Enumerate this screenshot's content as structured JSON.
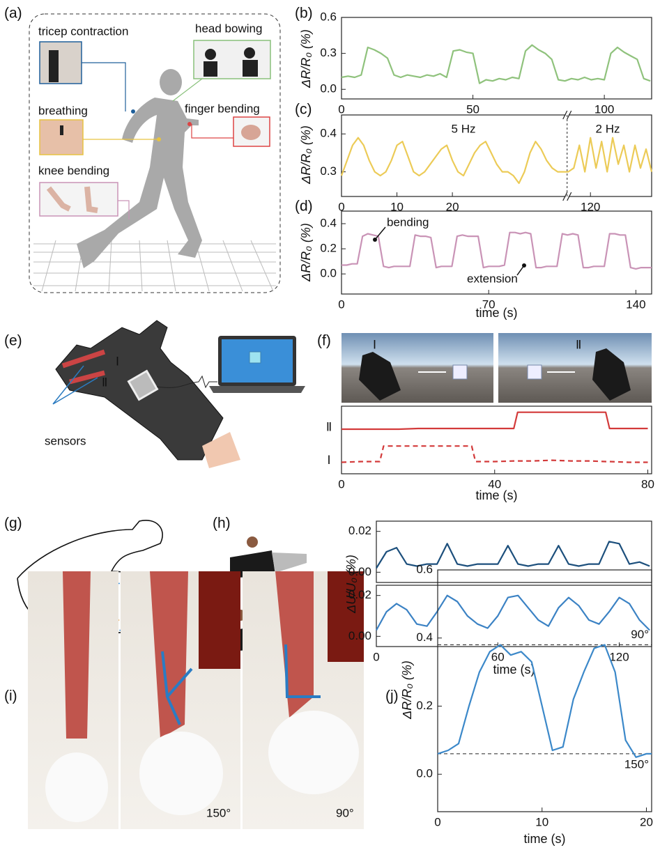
{
  "figure": {
    "panel_labels": [
      "(a)",
      "(b)",
      "(c)",
      "(d)",
      "(e)",
      "(f)",
      "(g)",
      "(h)",
      "(i)",
      "(j)"
    ],
    "a_labels": [
      "tricep contraction",
      "head bowing",
      "breathing",
      "finger bending",
      "knee bending"
    ],
    "e_labels": [
      "Ⅰ",
      "Ⅱ",
      "sensors"
    ],
    "f_photo_labels": [
      "Ⅰ",
      "Ⅱ"
    ],
    "i_labels": [
      "150°",
      "90°"
    ]
  },
  "chart_data": [
    {
      "type": "line",
      "ylabel": "ΔR/R₀ (%)",
      "x": [
        0,
        2.5,
        5,
        7.5,
        10,
        12.5,
        15,
        17.5,
        20,
        22.5,
        25,
        27.5,
        30,
        32.5,
        35,
        37.5,
        40,
        42.5,
        45,
        47.5,
        50,
        52.5,
        55,
        57.5,
        60,
        62.5,
        65,
        67.5,
        70,
        72.5,
        75,
        77.5,
        80,
        82.5,
        85,
        87.5,
        90,
        92.5,
        95,
        97.5,
        100,
        102.5,
        105,
        107.5,
        110,
        112.5,
        115,
        117.5
      ],
      "series": [
        {
          "color": "#8fc27c",
          "values": [
            0.1,
            0.11,
            0.1,
            0.12,
            0.35,
            0.33,
            0.3,
            0.26,
            0.12,
            0.1,
            0.12,
            0.11,
            0.1,
            0.12,
            0.11,
            0.13,
            0.1,
            0.32,
            0.33,
            0.31,
            0.3,
            0.05,
            0.08,
            0.07,
            0.09,
            0.08,
            0.1,
            0.09,
            0.32,
            0.37,
            0.33,
            0.3,
            0.25,
            0.08,
            0.07,
            0.09,
            0.08,
            0.1,
            0.08,
            0.09,
            0.08,
            0.3,
            0.35,
            0.31,
            0.28,
            0.25,
            0.09,
            0.07
          ]
        }
      ],
      "xlim": [
        0,
        118
      ],
      "ylim": [
        -0.08,
        0.6
      ],
      "xticks": [
        0,
        50,
        100
      ],
      "yticks": [
        {
          "value": 0,
          "label": "0.0"
        },
        0.3,
        0.6
      ]
    },
    {
      "type": "line",
      "ylabel": "ΔR/R₀ (%)",
      "annotations": [
        "5 Hz",
        "2 Hz"
      ],
      "x": [
        0,
        1,
        2,
        3,
        4,
        5,
        6,
        7,
        8,
        9,
        10,
        11,
        12,
        13,
        14,
        15,
        16,
        17,
        18,
        19,
        20,
        21,
        22,
        23,
        24,
        25,
        26,
        27,
        28,
        29,
        30,
        31,
        32,
        33,
        34,
        35,
        36,
        37,
        38,
        39,
        40,
        116,
        117,
        118,
        119,
        120,
        121,
        122,
        123,
        124,
        125,
        126,
        127,
        128,
        129,
        130,
        131
      ],
      "series": [
        {
          "color": "#eccb57",
          "values": [
            0.29,
            0.33,
            0.37,
            0.39,
            0.37,
            0.33,
            0.3,
            0.29,
            0.3,
            0.33,
            0.37,
            0.38,
            0.34,
            0.3,
            0.29,
            0.3,
            0.32,
            0.34,
            0.36,
            0.37,
            0.33,
            0.3,
            0.29,
            0.32,
            0.35,
            0.37,
            0.38,
            0.35,
            0.32,
            0.3,
            0.3,
            0.29,
            0.27,
            0.3,
            0.35,
            0.38,
            0.36,
            0.33,
            0.31,
            0.3,
            0.3,
            0.3,
            0.31,
            0.37,
            0.3,
            0.39,
            0.31,
            0.38,
            0.3,
            0.39,
            0.32,
            0.37,
            0.3,
            0.37,
            0.31,
            0.36,
            0.3
          ]
        }
      ],
      "xlim": [
        0,
        131
      ],
      "xbreak": [
        40.5,
        116
      ],
      "ylim": [
        0.235,
        0.45
      ],
      "xticks": [
        0,
        10,
        20,
        120
      ],
      "yticks": [
        0.3,
        0.4
      ]
    },
    {
      "type": "line",
      "ylabel": "ΔR/R₀ (%)",
      "xlabel": "time (s)",
      "annotations": [
        "bending",
        "extension"
      ],
      "x": [
        0,
        2.5,
        5,
        7.5,
        10,
        12.5,
        15,
        17.5,
        20,
        22.5,
        25,
        27.5,
        30,
        32.5,
        35,
        37.5,
        40,
        42.5,
        45,
        47.5,
        50,
        52.5,
        55,
        57.5,
        60,
        62.5,
        65,
        67.5,
        70,
        72.5,
        75,
        77.5,
        80,
        82.5,
        85,
        87.5,
        90,
        92.5,
        95,
        97.5,
        100,
        102.5,
        105,
        107.5,
        110,
        112.5,
        115,
        117.5,
        120,
        122.5,
        125,
        127.5,
        130,
        132.5,
        135,
        137.5,
        140,
        142.5,
        145,
        147.5
      ],
      "series": [
        {
          "color": "#c993b6",
          "values": [
            0.07,
            0.07,
            0.08,
            0.08,
            0.3,
            0.32,
            0.31,
            0.3,
            0.06,
            0.05,
            0.06,
            0.06,
            0.06,
            0.06,
            0.31,
            0.3,
            0.3,
            0.29,
            0.05,
            0.06,
            0.06,
            0.06,
            0.3,
            0.31,
            0.3,
            0.3,
            0.3,
            0.05,
            0.06,
            0.06,
            0.06,
            0.07,
            0.33,
            0.33,
            0.32,
            0.33,
            0.32,
            0.05,
            0.05,
            0.06,
            0.06,
            0.06,
            0.32,
            0.31,
            0.32,
            0.31,
            0.05,
            0.05,
            0.06,
            0.06,
            0.06,
            0.32,
            0.32,
            0.31,
            0.31,
            0.05,
            0.04,
            0.05,
            0.05,
            0.05
          ]
        }
      ],
      "xlim": [
        0,
        147.5
      ],
      "ylim": [
        -0.16,
        0.5
      ],
      "xticks": [
        0,
        70,
        140
      ],
      "yticks": [
        {
          "value": 0,
          "label": "0.0"
        },
        0.2,
        0.4
      ]
    },
    {
      "type": "line",
      "xlabel": "time (s)",
      "x": [
        0,
        5,
        10,
        11,
        15,
        20,
        25,
        30,
        34,
        35,
        40,
        45,
        46,
        50,
        55,
        60,
        65,
        69,
        70,
        75,
        80
      ],
      "series": [
        {
          "name": "Ⅱ",
          "color": "#d33a3a",
          "line_style": "solid",
          "values": [
            0.66,
            0.66,
            0.66,
            0.66,
            0.66,
            0.67,
            0.67,
            0.67,
            0.67,
            0.67,
            0.67,
            0.67,
            0.91,
            0.91,
            0.91,
            0.91,
            0.91,
            0.91,
            0.67,
            0.67,
            0.67
          ]
        },
        {
          "name": "Ⅰ",
          "color": "#d33a3a",
          "line_style": "dashed",
          "values": [
            0.17,
            0.18,
            0.18,
            0.41,
            0.41,
            0.41,
            0.41,
            0.41,
            0.41,
            0.18,
            0.18,
            0.19,
            0.19,
            0.19,
            0.2,
            0.19,
            0.19,
            0.18,
            0.18,
            0.17,
            0.17
          ]
        }
      ],
      "xlim": [
        0,
        81
      ],
      "ylim": [
        0,
        1
      ],
      "xticks": [
        0,
        40,
        80
      ]
    },
    {
      "type": "line",
      "ylabel": "ΔU/U₀ (%)",
      "x": [
        0,
        5,
        10,
        15,
        20,
        25,
        30,
        35,
        40,
        45,
        50,
        55,
        60,
        65,
        70,
        75,
        80,
        85,
        90,
        95,
        100,
        105,
        110,
        115,
        120,
        125,
        130,
        135
      ],
      "series": [
        {
          "color": "#1c4f7c",
          "values": [
            0.002,
            0.01,
            0.012,
            0.004,
            0.003,
            0.004,
            0.004,
            0.014,
            0.004,
            0.003,
            0.004,
            0.004,
            0.004,
            0.013,
            0.004,
            0.003,
            0.004,
            0.004,
            0.013,
            0.004,
            0.003,
            0.004,
            0.004,
            0.015,
            0.014,
            0.004,
            0.005,
            0.003
          ]
        }
      ],
      "xlim": [
        0,
        136
      ],
      "ylim": [
        -0.005,
        0.025
      ],
      "yticks": [
        {
          "value": 0,
          "label": "0.00"
        },
        0.02
      ]
    },
    {
      "type": "line",
      "xlabel": "time (s)",
      "x": [
        0,
        5,
        10,
        15,
        20,
        25,
        30,
        35,
        40,
        45,
        50,
        55,
        60,
        65,
        70,
        75,
        80,
        85,
        90,
        95,
        100,
        105,
        110,
        115,
        120,
        125,
        130,
        135
      ],
      "series": [
        {
          "color": "#3b82c4",
          "values": [
            0.003,
            0.012,
            0.016,
            0.013,
            0.006,
            0.005,
            0.012,
            0.02,
            0.017,
            0.01,
            0.006,
            0.004,
            0.01,
            0.019,
            0.02,
            0.014,
            0.008,
            0.005,
            0.014,
            0.019,
            0.015,
            0.008,
            0.006,
            0.012,
            0.019,
            0.016,
            0.008,
            0.003
          ]
        }
      ],
      "xlim": [
        0,
        136
      ],
      "ylim": [
        -0.005,
        0.025
      ],
      "xticks": [
        0,
        60,
        120
      ],
      "yticks": [
        {
          "value": 0,
          "label": "0.00"
        },
        0.02
      ]
    },
    {
      "type": "line",
      "ylabel": "ΔR/R₀ (%)",
      "xlabel": "time (s)",
      "x": [
        0,
        1,
        2,
        3,
        4,
        5,
        6,
        7,
        8,
        9,
        10,
        11,
        12,
        13,
        14,
        15,
        16,
        17,
        18,
        19,
        20,
        20.5
      ],
      "series": [
        {
          "color": "#3b88c9",
          "values": [
            0.06,
            0.07,
            0.09,
            0.2,
            0.3,
            0.36,
            0.38,
            0.35,
            0.36,
            0.33,
            0.2,
            0.07,
            0.08,
            0.22,
            0.3,
            0.37,
            0.38,
            0.3,
            0.1,
            0.05,
            0.06,
            0.06
          ]
        }
      ],
      "hlines": [
        {
          "value": 0.38,
          "label": "90°"
        },
        {
          "value": 0.06,
          "label": "150°"
        }
      ],
      "xlim": [
        0,
        20.5
      ],
      "ylim": [
        -0.11,
        0.6
      ],
      "xticks": [
        0,
        10,
        20
      ],
      "yticks": [
        {
          "value": 0,
          "label": "0.0"
        },
        0.2,
        0.4,
        0.6
      ]
    }
  ]
}
